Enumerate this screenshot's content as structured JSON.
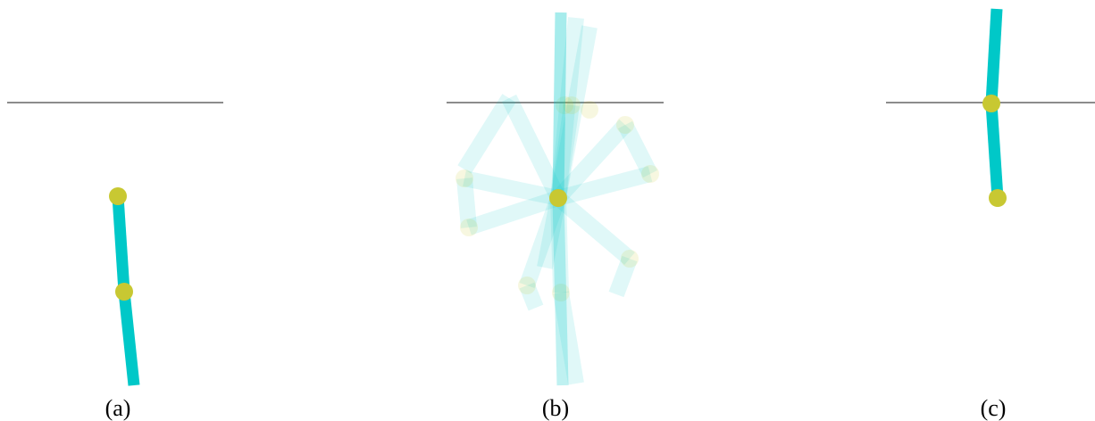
{
  "panels": [
    {
      "id": "a",
      "caption": "(a)",
      "pole_color": "#00c8c8",
      "joint_color": "#c8c832",
      "ground_line_color": "#666666"
    },
    {
      "id": "b",
      "caption": "(b)",
      "pole_color": "#00c8c8",
      "joint_color": "#c8c832",
      "ground_line_color": "#666666",
      "trail_opacity": 0.12
    },
    {
      "id": "c",
      "caption": "(c)",
      "pole_color": "#00c8c8",
      "joint_color": "#c8c832",
      "ground_line_color": "#666666"
    }
  ]
}
